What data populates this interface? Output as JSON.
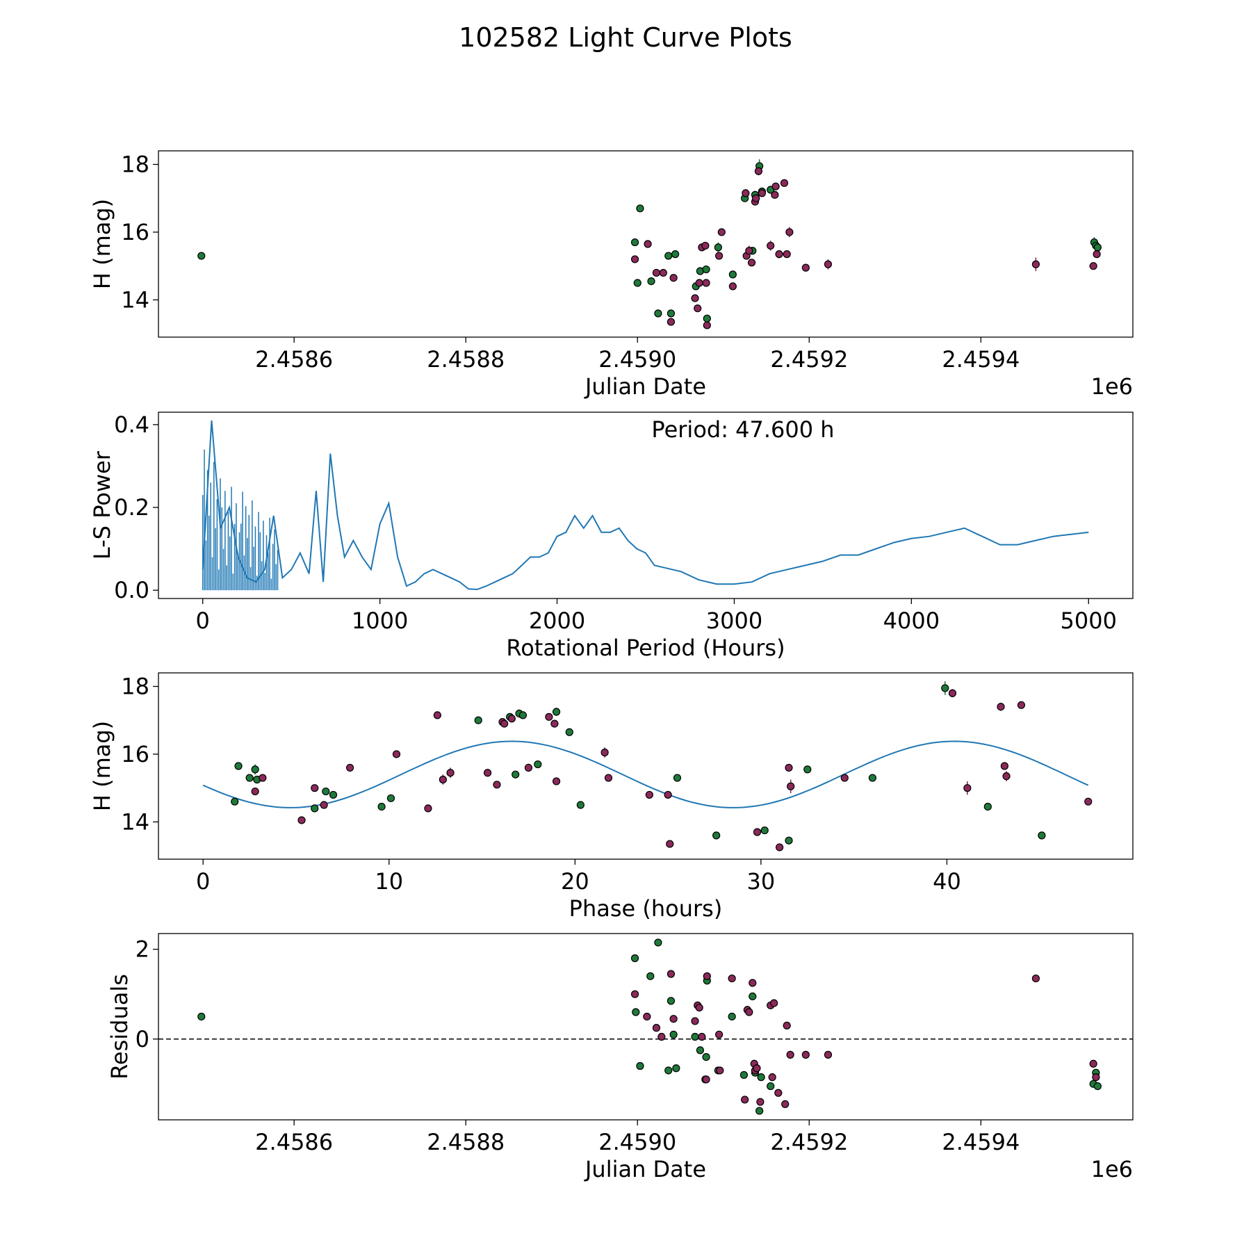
{
  "chart_data": [
    {
      "type": "scatter",
      "suptitle": "102582 Light Curve Plots",
      "xlabel": "Julian Date",
      "ylabel": "H (mag)",
      "offset_text": "1e6",
      "xlim": [
        2458442,
        2459577
      ],
      "ylim": [
        12.9,
        18.4
      ],
      "xticks": [
        2458600,
        2458800,
        2459000,
        2459200,
        2459400
      ],
      "xtick_labels": [
        "2.4586",
        "2.4588",
        "2.4590",
        "2.4592",
        "2.4594"
      ],
      "yticks": [
        14,
        16,
        18
      ],
      "ytick_labels": [
        "14",
        "16",
        "18"
      ],
      "series": [
        {
          "name": "green",
          "color": "#1f7a3a",
          "x": [
            2458492,
            2458997,
            2459000,
            2459003,
            2459016,
            2459024,
            2459036,
            2459039,
            2459044,
            2459068,
            2459073,
            2459080,
            2459081,
            2459094,
            2459111,
            2459125,
            2459134,
            2459137,
            2459142,
            2459145,
            2459155,
            2459532,
            2459534,
            2459536
          ],
          "y": [
            15.3,
            15.7,
            14.5,
            16.7,
            14.55,
            13.6,
            15.3,
            13.6,
            15.35,
            14.4,
            14.85,
            14.9,
            13.45,
            15.55,
            14.75,
            17.0,
            15.45,
            17.1,
            17.95,
            17.2,
            17.25,
            15.7,
            15.6,
            15.55
          ],
          "err": [
            0.1,
            0.08,
            0.05,
            0.05,
            0.05,
            0.05,
            0.05,
            0.05,
            0.05,
            0.05,
            0.05,
            0.05,
            0.05,
            0.15,
            0.05,
            0.1,
            0.05,
            0.12,
            0.2,
            0.12,
            0.1,
            0.15,
            0.1,
            0.1
          ]
        },
        {
          "name": "magenta",
          "color": "#8b2a5a",
          "x": [
            2458997,
            2459012,
            2459022,
            2459030,
            2459039,
            2459042,
            2459067,
            2459070,
            2459072,
            2459075,
            2459079,
            2459080,
            2459081,
            2459095,
            2459098,
            2459111,
            2459126,
            2459127,
            2459130,
            2459133,
            2459137,
            2459138,
            2459141,
            2459145,
            2459155,
            2459160,
            2459161,
            2459165,
            2459171,
            2459174,
            2459177,
            2459196,
            2459222,
            2459464,
            2459531,
            2459535
          ],
          "y": [
            15.2,
            15.65,
            14.8,
            14.8,
            13.35,
            14.65,
            14.05,
            13.75,
            14.5,
            15.55,
            15.6,
            14.5,
            13.25,
            15.3,
            16.0,
            14.4,
            17.15,
            15.3,
            15.45,
            15.1,
            16.9,
            17.0,
            17.8,
            17.15,
            15.6,
            17.1,
            17.35,
            15.35,
            17.45,
            15.35,
            16.0,
            14.95,
            15.05,
            15.05,
            15.0,
            15.35
          ],
          "err": [
            0.05,
            0.05,
            0.05,
            0.05,
            0.05,
            0.05,
            0.05,
            0.05,
            0.05,
            0.05,
            0.05,
            0.05,
            0.05,
            0.05,
            0.05,
            0.05,
            0.08,
            0.1,
            0.15,
            0.05,
            0.08,
            0.1,
            0.12,
            0.1,
            0.15,
            0.1,
            0.1,
            0.12,
            0.1,
            0.1,
            0.15,
            0.1,
            0.15,
            0.2,
            0.05,
            0.1
          ]
        }
      ]
    },
    {
      "type": "line",
      "title": "",
      "xlabel": "Rotational Period (Hours)",
      "ylabel": "L-S Power",
      "annotation": "Period: 47.600 h",
      "xlim": [
        -250,
        5250
      ],
      "ylim": [
        -0.02,
        0.43
      ],
      "xticks": [
        0,
        1000,
        2000,
        3000,
        4000,
        5000
      ],
      "xtick_labels": [
        "0",
        "1000",
        "2000",
        "3000",
        "4000",
        "5000"
      ],
      "yticks": [
        0.0,
        0.2,
        0.4
      ],
      "ytick_labels": [
        "0.0",
        "0.2",
        "0.4"
      ],
      "color": "#1f77b4",
      "x": [
        0,
        50,
        100,
        150,
        200,
        250,
        300,
        350,
        400,
        450,
        500,
        550,
        600,
        640,
        680,
        720,
        760,
        800,
        850,
        900,
        950,
        1000,
        1050,
        1100,
        1150,
        1200,
        1250,
        1300,
        1350,
        1400,
        1450,
        1500,
        1550,
        1600,
        1650,
        1700,
        1750,
        1800,
        1850,
        1900,
        1950,
        2000,
        2050,
        2100,
        2150,
        2200,
        2250,
        2300,
        2350,
        2400,
        2450,
        2500,
        2550,
        2600,
        2700,
        2800,
        2900,
        3000,
        3100,
        3200,
        3300,
        3400,
        3500,
        3600,
        3700,
        3800,
        3900,
        4000,
        4100,
        4200,
        4300,
        4400,
        4500,
        4600,
        4700,
        4800,
        4900,
        5000
      ],
      "y": [
        0.05,
        0.41,
        0.15,
        0.2,
        0.08,
        0.03,
        0.02,
        0.05,
        0.18,
        0.03,
        0.05,
        0.09,
        0.04,
        0.24,
        0.02,
        0.33,
        0.18,
        0.08,
        0.12,
        0.08,
        0.05,
        0.16,
        0.21,
        0.08,
        0.01,
        0.02,
        0.04,
        0.05,
        0.04,
        0.03,
        0.02,
        0.003,
        0.002,
        0.01,
        0.02,
        0.03,
        0.04,
        0.06,
        0.08,
        0.08,
        0.09,
        0.13,
        0.14,
        0.18,
        0.15,
        0.18,
        0.14,
        0.14,
        0.15,
        0.12,
        0.1,
        0.09,
        0.06,
        0.055,
        0.045,
        0.025,
        0.015,
        0.015,
        0.02,
        0.04,
        0.05,
        0.06,
        0.07,
        0.085,
        0.085,
        0.1,
        0.115,
        0.125,
        0.13,
        0.14,
        0.15,
        0.13,
        0.11,
        0.11,
        0.12,
        0.13,
        0.135,
        0.14
      ]
    },
    {
      "type": "scatter",
      "title": "",
      "xlabel": "Phase (hours)",
      "ylabel": "H (mag)",
      "xlim": [
        -2.4,
        50.0
      ],
      "ylim": [
        12.9,
        18.4
      ],
      "xticks": [
        0,
        10,
        20,
        30,
        40
      ],
      "xtick_labels": [
        "0",
        "10",
        "20",
        "30",
        "40"
      ],
      "yticks": [
        14,
        16,
        18
      ],
      "ytick_labels": [
        "14",
        "16",
        "18"
      ],
      "model": {
        "name": "sinusoid fit",
        "color": "#1f77b4",
        "mean": 15.4,
        "amplitude": 0.98,
        "period_hours": 23.8,
        "peak_phase": 16.6,
        "x_range": [
          0,
          47.6
        ]
      },
      "series": [
        {
          "name": "green",
          "color": "#1f7a3a",
          "x": [
            1.7,
            1.9,
            2.5,
            2.8,
            2.9,
            6.0,
            6.6,
            7.0,
            9.6,
            10.1,
            14.8,
            16.5,
            16.8,
            17.0,
            17.2,
            18.0,
            19.0,
            19.7,
            20.3,
            25.5,
            27.6,
            30.2,
            31.5,
            32.5,
            36.0,
            39.9,
            42.2,
            45.1
          ],
          "y": [
            14.6,
            15.65,
            15.3,
            15.55,
            15.25,
            14.4,
            14.9,
            14.8,
            14.45,
            14.7,
            17.0,
            17.1,
            15.4,
            17.2,
            17.15,
            15.7,
            17.25,
            16.65,
            14.5,
            15.3,
            13.6,
            13.75,
            13.45,
            15.55,
            15.3,
            17.95,
            14.45,
            13.6
          ],
          "err": [
            0.05,
            0.1,
            0.05,
            0.15,
            0.1,
            0.05,
            0.05,
            0.05,
            0.05,
            0.05,
            0.1,
            0.1,
            0.05,
            0.12,
            0.1,
            0.05,
            0.12,
            0.05,
            0.05,
            0.05,
            0.05,
            0.05,
            0.05,
            0.1,
            0.08,
            0.2,
            0.05,
            0.05
          ]
        },
        {
          "name": "magenta",
          "color": "#8b2a5a",
          "x": [
            2.8,
            3.2,
            5.3,
            6.0,
            6.5,
            7.9,
            10.4,
            12.1,
            12.6,
            12.9,
            13.3,
            15.3,
            15.8,
            16.1,
            16.2,
            16.6,
            17.5,
            18.6,
            18.9,
            19.0,
            21.6,
            21.8,
            24.0,
            25.0,
            25.1,
            29.8,
            31.0,
            31.5,
            31.6,
            34.5,
            40.3,
            41.1,
            42.9,
            43.1,
            43.2,
            44.0,
            47.6
          ],
          "y": [
            14.9,
            15.3,
            14.05,
            15.0,
            14.5,
            15.6,
            16.0,
            14.4,
            17.15,
            15.25,
            15.45,
            15.45,
            15.1,
            16.95,
            16.9,
            17.05,
            15.6,
            17.1,
            16.9,
            15.2,
            16.05,
            15.3,
            14.8,
            14.8,
            13.35,
            13.7,
            13.25,
            15.6,
            15.05,
            15.3,
            17.8,
            15.0,
            17.4,
            15.65,
            15.35,
            17.45,
            14.6
          ],
          "err": [
            0.05,
            0.1,
            0.05,
            0.05,
            0.05,
            0.05,
            0.05,
            0.05,
            0.05,
            0.15,
            0.15,
            0.1,
            0.05,
            0.1,
            0.08,
            0.05,
            0.12,
            0.1,
            0.05,
            0.05,
            0.15,
            0.1,
            0.05,
            0.05,
            0.05,
            0.05,
            0.05,
            0.05,
            0.2,
            0.05,
            0.12,
            0.2,
            0.12,
            0.05,
            0.15,
            0.1,
            0.05
          ]
        }
      ]
    },
    {
      "type": "scatter",
      "title": "",
      "xlabel": "Julian Date",
      "ylabel": "Residuals",
      "offset_text": "1e6",
      "xlim": [
        2458442,
        2459577
      ],
      "ylim": [
        -1.8,
        2.35
      ],
      "xticks": [
        2458600,
        2458800,
        2459000,
        2459200,
        2459400
      ],
      "xtick_labels": [
        "2.4586",
        "2.4588",
        "2.4590",
        "2.4592",
        "2.4594"
      ],
      "yticks": [
        0,
        2
      ],
      "ytick_labels": [
        "0",
        "2"
      ],
      "reference_line": {
        "y": 0,
        "style": "dashed",
        "color": "#000000"
      },
      "series": [
        {
          "name": "green",
          "color": "#1f7a3a",
          "x": [
            2458492,
            2458997,
            2458998,
            2459003,
            2459015,
            2459024,
            2459036,
            2459039,
            2459042,
            2459045,
            2459067,
            2459073,
            2459080,
            2459081,
            2459094,
            2459110,
            2459124,
            2459134,
            2459137,
            2459142,
            2459144,
            2459155,
            2459531,
            2459534,
            2459536
          ],
          "y": [
            0.5,
            1.8,
            0.6,
            -0.6,
            1.4,
            2.15,
            -0.7,
            0.85,
            0.1,
            -0.65,
            0.05,
            -0.25,
            -0.4,
            1.3,
            -0.7,
            0.5,
            -0.8,
            0.95,
            -0.75,
            -1.6,
            -0.85,
            -1.05,
            -1.0,
            -0.75,
            -1.05
          ],
          "err": [
            0.03,
            0.03,
            0.03,
            0.03,
            0.03,
            0.03,
            0.03,
            0.03,
            0.03,
            0.03,
            0.03,
            0.03,
            0.03,
            0.03,
            0.03,
            0.03,
            0.03,
            0.03,
            0.03,
            0.03,
            0.03,
            0.03,
            0.03,
            0.03,
            0.03
          ]
        },
        {
          "name": "magenta",
          "color": "#8b2a5a",
          "x": [
            2458997,
            2459011,
            2459022,
            2459028,
            2459039,
            2459042,
            2459067,
            2459070,
            2459072,
            2459075,
            2459079,
            2459080,
            2459081,
            2459095,
            2459096,
            2459110,
            2459125,
            2459128,
            2459130,
            2459134,
            2459136,
            2459137,
            2459139,
            2459143,
            2459155,
            2459157,
            2459159,
            2459164,
            2459172,
            2459174,
            2459178,
            2459196,
            2459222,
            2459464,
            2459531,
            2459534
          ],
          "y": [
            1.0,
            0.5,
            0.25,
            0.05,
            1.45,
            0.45,
            0.4,
            0.75,
            0.7,
            0.05,
            -0.9,
            -0.9,
            1.4,
            0.1,
            -0.7,
            1.35,
            -1.35,
            0.65,
            0.6,
            1.25,
            -0.55,
            -0.7,
            -0.65,
            -1.4,
            0.75,
            -0.85,
            0.8,
            -1.2,
            -1.45,
            0.3,
            -0.35,
            -0.35,
            -0.35,
            1.35,
            -0.55,
            -0.85
          ],
          "err": [
            0.03,
            0.03,
            0.03,
            0.03,
            0.03,
            0.03,
            0.03,
            0.03,
            0.03,
            0.03,
            0.03,
            0.03,
            0.03,
            0.03,
            0.03,
            0.03,
            0.03,
            0.03,
            0.03,
            0.03,
            0.03,
            0.03,
            0.03,
            0.03,
            0.03,
            0.03,
            0.03,
            0.03,
            0.03,
            0.03,
            0.03,
            0.03,
            0.03,
            0.03,
            0.03,
            0.03
          ]
        }
      ]
    }
  ]
}
